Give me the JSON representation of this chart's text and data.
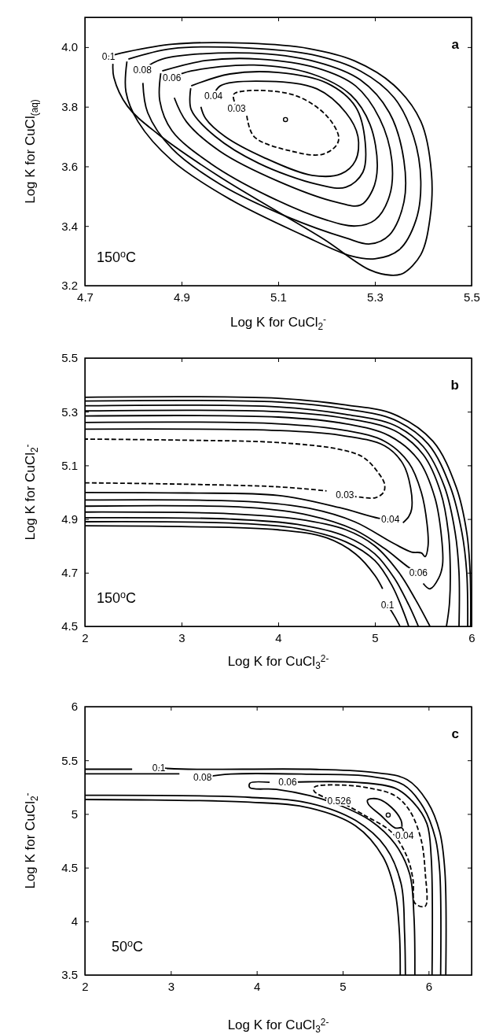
{
  "chart_data": [
    {
      "type": "line",
      "xlabel": "Log K for CuCl$_{2}$$^{-}$",
      "ylabel": "Log K for CuCl$_{(aq)}$",
      "xlim": [
        4.7,
        5.5
      ],
      "ylim": [
        3.2,
        4.1
      ],
      "xticks": [
        4.7,
        4.9,
        5.1,
        5.3,
        5.5
      ],
      "yticks": [
        3.2,
        3.4,
        3.6,
        3.8,
        {
          "value": 4.0,
          "label": "4.0"
        }
      ],
      "annotations": [
        "a",
        "150$^{o}$C"
      ],
      "series": [
        {
          "name": "0.1",
          "color": "#000000",
          "x": [
            4.749,
            4.783,
            4.882,
            5.038,
            5.164,
            5.258,
            5.339,
            5.395,
            5.417,
            5.414,
            5.395,
            5.358,
            5.333,
            5.289,
            5.195,
            5.101,
            4.976,
            4.85,
            4.788,
            4.76,
            4.758
          ],
          "values": [
            3.969,
            3.983,
            4.01,
            4.013,
            3.995,
            3.954,
            3.873,
            3.751,
            3.578,
            3.426,
            3.304,
            3.241,
            3.235,
            3.253,
            3.355,
            3.446,
            3.568,
            3.71,
            3.802,
            3.898,
            3.944
          ]
        },
        {
          "color": "#000000",
          "x": [
            4.79,
            4.88,
            5.04,
            5.17,
            5.27,
            5.34,
            5.38,
            5.395,
            5.385,
            5.35,
            5.3,
            5.25,
            5.15,
            5.0,
            4.88,
            4.81,
            4.785,
            4.787
          ],
          "values": [
            3.96,
            3.995,
            3.997,
            3.975,
            3.92,
            3.83,
            3.7,
            3.55,
            3.42,
            3.32,
            3.29,
            3.3,
            3.37,
            3.49,
            3.62,
            3.75,
            3.85,
            3.952
          ]
        },
        {
          "name": "0.08",
          "color": "#000000",
          "x": [
            4.819,
            4.86,
            5.04,
            5.18,
            5.27,
            5.33,
            5.36,
            5.36,
            5.33,
            5.29,
            5.24,
            5.12,
            4.98,
            4.88,
            4.83,
            4.82
          ],
          "values": [
            3.924,
            3.96,
            3.98,
            3.95,
            3.89,
            3.78,
            3.62,
            3.48,
            3.37,
            3.34,
            3.36,
            3.43,
            3.54,
            3.66,
            3.78,
            3.88
          ]
        },
        {
          "color": "#000000",
          "x": [
            4.86,
            4.95,
            5.06,
            5.18,
            5.26,
            5.31,
            5.335,
            5.33,
            5.3,
            5.26,
            5.2,
            5.08,
            4.96,
            4.88,
            4.855,
            4.857
          ],
          "values": [
            3.92,
            3.955,
            3.96,
            3.93,
            3.87,
            3.76,
            3.62,
            3.5,
            3.42,
            3.4,
            3.42,
            3.5,
            3.61,
            3.72,
            3.82,
            3.912
          ]
        },
        {
          "name": "0.06",
          "color": "#000000",
          "x": [
            4.88,
            4.92,
            5.05,
            5.17,
            5.25,
            5.29,
            5.305,
            5.295,
            5.27,
            5.22,
            5.1,
            4.98,
            4.91,
            4.885
          ],
          "values": [
            3.898,
            3.92,
            3.94,
            3.91,
            3.84,
            3.74,
            3.6,
            3.52,
            3.47,
            3.48,
            3.55,
            3.65,
            3.75,
            3.83
          ]
        },
        {
          "color": "#000000",
          "x": [
            4.92,
            5.0,
            5.1,
            5.2,
            5.26,
            5.28,
            5.275,
            5.24,
            5.18,
            5.06,
            4.97,
            4.92,
            4.919
          ],
          "values": [
            3.87,
            3.91,
            3.915,
            3.88,
            3.8,
            3.68,
            3.58,
            3.53,
            3.54,
            3.61,
            3.7,
            3.79,
            3.862
          ]
        },
        {
          "name": "0.04",
          "color": "#000000",
          "x": [
            4.966,
            4.98,
            5.08,
            5.18,
            5.24,
            5.265,
            5.26,
            5.23,
            5.17,
            5.07,
            4.99,
            4.95,
            4.94
          ],
          "values": [
            3.835,
            3.87,
            3.885,
            3.86,
            3.78,
            3.7,
            3.62,
            3.575,
            3.57,
            3.63,
            3.7,
            3.76,
            3.8
          ]
        },
        {
          "name": "0.03",
          "color": "#000000",
          "line_style": "dashed",
          "x": [
            5.014,
            5.007,
            5.01,
            5.06,
            5.14,
            5.2,
            5.225,
            5.22,
            5.19,
            5.13,
            5.05,
            5.035
          ],
          "values": [
            3.795,
            3.835,
            3.845,
            3.855,
            3.835,
            3.77,
            3.7,
            3.67,
            3.64,
            3.65,
            3.7,
            3.77
          ]
        },
        {
          "type": "scatter",
          "marker": "circle",
          "color": "#000000",
          "x": [
            5.115
          ],
          "values": [
            3.757
          ]
        }
      ]
    },
    {
      "type": "line",
      "xlabel": "Log K for CuCl$_{3}$$^{2-}$",
      "ylabel": "Log K for CuCl$_{2}$$^{-}$",
      "xlim": [
        2,
        6
      ],
      "ylim": [
        4.5,
        5.5
      ],
      "xticks": [
        2,
        3,
        4,
        5,
        6
      ],
      "yticks": [
        4.5,
        4.7,
        4.9,
        5.1,
        5.3,
        5.5
      ],
      "annotations": [
        "b",
        "150$^{o}$C"
      ],
      "series": [
        {
          "name": "0.03",
          "color": "#000000",
          "line_style": "dashed",
          "x": [
            4.69,
            4.88,
            5.01,
            5.09,
            5.1,
            5.04,
            4.88,
            4.63,
            4,
            3,
            2,
            null,
            2,
            3,
            4,
            4.5
          ],
          "values": [
            4.99,
            4.98,
            4.98,
            5.0,
            5.03,
            5.07,
            5.13,
            5.16,
            5.185,
            5.194,
            5.198,
            null,
            5.035,
            5.03,
            5.02,
            5.005
          ]
        },
        {
          "name": "0.04",
          "color": "#000000",
          "x": [
            5.16,
            5.04,
            4.63,
            4,
            3.06,
            2,
            null,
            2,
            4,
            4.63,
            5.1,
            5.29,
            5.37,
            5.38,
            5.35,
            5.29
          ],
          "values": [
            4.9,
            4.903,
            4.943,
            4.988,
            4.997,
            4.999,
            null,
            5.235,
            5.23,
            5.213,
            5.173,
            5.106,
            5.016,
            4.937,
            4.909,
            4.886
          ]
        },
        {
          "color": "#000000",
          "x": [
            2,
            4,
            4.7,
            5.1,
            5.35,
            5.48,
            5.54,
            5.55,
            5.52,
            5.48,
            5.38,
            5.19,
            4.79,
            4.32,
            3.69,
            2
          ],
          "values": [
            5.26,
            5.255,
            5.23,
            5.19,
            5.11,
            5.0,
            4.88,
            4.8,
            4.76,
            4.774,
            4.777,
            4.81,
            4.89,
            4.94,
            4.965,
            4.971
          ]
        },
        {
          "name": "0.06",
          "color": "#000000",
          "x": [
            5.45,
            5.35,
            5.1,
            4.79,
            4.32,
            3.69,
            2,
            null,
            2,
            4,
            4.7,
            5.15,
            5.45,
            5.62,
            5.69,
            5.7,
            5.66,
            5.57,
            5.5
          ],
          "values": [
            4.7,
            4.72,
            4.79,
            4.86,
            4.914,
            4.943,
            4.948,
            null,
            5.284,
            5.28,
            5.255,
            5.21,
            5.12,
            4.98,
            4.83,
            4.73,
            4.68,
            4.64,
            4.66
          ]
        },
        {
          "color": "#000000",
          "x": [
            2,
            4,
            4.7,
            5.2,
            5.5,
            5.68,
            5.76,
            5.78,
            5.77,
            5.74,
            null,
            5.57,
            5.42,
            5.25,
            5.0,
            4.7,
            4.2,
            3.5,
            2
          ],
          "values": [
            5.303,
            5.3,
            5.275,
            5.23,
            5.14,
            5.0,
            4.85,
            4.7,
            4.58,
            4.5,
            null,
            4.5,
            4.6,
            4.7,
            4.8,
            4.86,
            4.9,
            4.92,
            4.926
          ]
        },
        {
          "color": "#000000",
          "x": [
            2,
            4,
            4.7,
            5.2,
            5.5,
            5.72,
            5.83,
            5.87,
            5.87,
            null,
            5.45,
            5.35,
            5.2,
            5.0,
            4.7,
            4.2,
            3.5,
            2
          ],
          "values": [
            5.322,
            5.318,
            5.29,
            5.25,
            5.17,
            5.02,
            4.85,
            4.7,
            4.5,
            null,
            4.5,
            4.58,
            4.68,
            4.77,
            4.835,
            4.88,
            4.9,
            4.905
          ]
        },
        {
          "color": "#000000",
          "x": [
            2,
            4,
            4.7,
            5.2,
            5.55,
            5.78,
            5.9,
            5.95,
            5.96,
            null,
            5.35,
            5.3,
            5.18,
            5.0,
            4.7,
            4.2,
            3.5,
            2
          ],
          "values": [
            5.34,
            5.336,
            5.31,
            5.27,
            5.18,
            5.02,
            4.85,
            4.7,
            4.5,
            null,
            4.5,
            4.55,
            4.65,
            4.745,
            4.815,
            4.865,
            4.885,
            4.89
          ]
        },
        {
          "name": "0.1",
          "color": "#000000",
          "x": [
            5.13,
            5.2,
            5.26,
            null,
            2,
            4,
            4.7,
            5.2,
            5.6,
            5.84,
            5.95,
            5.985,
            5.99,
            null,
            2,
            3,
            4,
            4.5,
            4.8,
            5.0,
            5.08
          ],
          "values": [
            4.58,
            4.54,
            4.5,
            null,
            5.354,
            5.35,
            5.325,
            5.29,
            5.19,
            5.02,
            4.85,
            4.7,
            4.5,
            null,
            4.875,
            4.872,
            4.86,
            4.83,
            4.77,
            4.69,
            4.64
          ]
        }
      ]
    },
    {
      "type": "line",
      "xlabel": "Log K for CuCl$_{3}$$^{2-}$",
      "ylabel": "Log K for CuCl$_{2}$$^{-}$",
      "xlim": [
        2,
        6.5
      ],
      "ylim": [
        3.5,
        6
      ],
      "xticks": [
        2,
        3,
        4,
        5,
        6
      ],
      "yticks": [
        3.5,
        4,
        4.5,
        5,
        5.5,
        6
      ],
      "annotations": [
        "c",
        "50$^{o}$C"
      ],
      "series": [
        {
          "name": "0.1",
          "color": "#000000",
          "x": [
            2.86,
            3.2,
            4.62,
            5.32,
            5.75,
            5.99,
            6.13,
            6.19,
            6.2,
            null,
            5.67,
            5.66,
            5.61,
            5.47,
            5.15,
            4.62,
            3.92,
            2,
            null,
            2,
            2.55
          ],
          "values": [
            5.43,
            5.417,
            5.417,
            5.39,
            5.32,
            5.11,
            4.83,
            4.46,
            3.5,
            null,
            3.5,
            3.9,
            4.27,
            4.6,
            4.89,
            5.056,
            5.11,
            5.135,
            null,
            5.417,
            5.417
          ]
        },
        {
          "name": "0.08",
          "color": "#000000",
          "x": [
            3.37,
            3.7,
            4.62,
            5.32,
            5.71,
            5.94,
            6.08,
            6.13,
            6.14,
            null,
            5.73,
            5.72,
            5.68,
            5.5,
            5.15,
            4.62,
            3.92,
            2,
            null,
            2,
            3.1
          ],
          "values": [
            5.34,
            5.372,
            5.37,
            5.35,
            5.27,
            5.06,
            4.77,
            4.46,
            3.5,
            null,
            3.5,
            3.9,
            4.35,
            4.69,
            4.94,
            5.1,
            5.155,
            5.174,
            null,
            5.374,
            5.374
          ]
        },
        {
          "name": "0.06",
          "color": "#000000",
          "x": [
            4.36,
            4.6,
            5.15,
            5.61,
            5.82,
            5.98,
            6.03,
            6.04,
            null,
            5.84,
            5.83,
            5.78,
            5.61,
            5.32,
            4.97,
            4.62,
            4.23,
            3.92,
            3.92,
            4.15
          ],
          "values": [
            5.295,
            5.3,
            5.295,
            5.24,
            5.11,
            4.91,
            4.6,
            3.5,
            null,
            3.5,
            4.04,
            4.44,
            4.72,
            4.94,
            5.08,
            5.17,
            5.23,
            5.245,
            5.287,
            5.295
          ]
        },
        {
          "name": "0.526",
          "color": "#000000",
          "line_style": "dashed",
          "x": [
            4.96,
            5.25,
            5.57,
            5.75,
            5.82,
            5.84,
            5.96,
            5.96,
            5.91,
            5.78,
            5.61,
            5.32,
            4.97,
            4.67,
            4.67,
            4.83
          ],
          "values": [
            5.12,
            4.99,
            4.83,
            4.6,
            4.38,
            4.17,
            4.14,
            4.46,
            4.77,
            5.03,
            5.17,
            5.24,
            5.27,
            5.25,
            5.21,
            5.14
          ]
        },
        {
          "name": "0.04",
          "color": "#000000",
          "x": [
            5.72,
            5.69,
            5.61,
            5.44,
            5.3,
            5.29,
            5.41,
            5.57,
            5.68,
            5.69
          ],
          "values": [
            4.8,
            4.87,
            4.87,
            4.99,
            5.09,
            5.13,
            5.14,
            5.06,
            4.94,
            4.88
          ]
        },
        {
          "type": "scatter",
          "marker": "circle",
          "color": "#000000",
          "x": [
            5.53
          ],
          "values": [
            4.99
          ]
        }
      ]
    }
  ]
}
